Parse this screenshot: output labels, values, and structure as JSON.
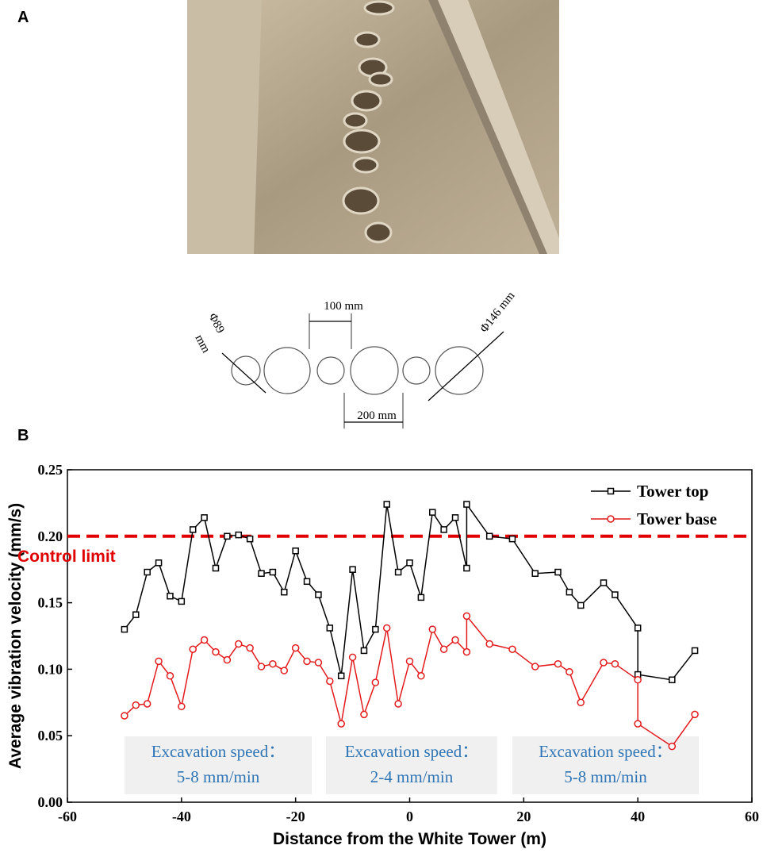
{
  "panel_a": {
    "label": "A"
  },
  "diagram": {
    "spacing_label": "100 mm",
    "small_diameter_label": [
      "Φ89",
      "mm"
    ],
    "large_diameter_label": "Φ146 mm",
    "center_spacing_label": "200 mm"
  },
  "chart_data": {
    "type": "line",
    "panel_label": "B",
    "xlabel": "Distance from the White Tower (m)",
    "ylabel": "Average vibration velocity (mm/s)",
    "xlim": [
      -60,
      60
    ],
    "xticks": [
      -60,
      -40,
      -20,
      0,
      20,
      40,
      60
    ],
    "ylim": [
      0,
      0.25
    ],
    "yticks": [
      {
        "value": 0,
        "label": "0.00"
      },
      {
        "value": 0.05,
        "label": "0.05"
      },
      {
        "value": 0.1,
        "label": "0.10"
      },
      {
        "value": 0.15,
        "label": "0.15"
      },
      {
        "value": 0.2,
        "label": "0.20"
      },
      {
        "value": 0.25,
        "label": "0.25"
      }
    ],
    "legend": "upper right",
    "series": [
      {
        "name": "Tower top",
        "color": "#000000",
        "marker": "square",
        "x": [
          -50,
          -48,
          -46,
          -44,
          -42,
          -40,
          -38,
          -36,
          -34,
          -32,
          -30,
          -28,
          -26,
          -24,
          -22,
          -20,
          -18,
          -16,
          -14,
          -12,
          -10,
          -8,
          -6,
          -4,
          -2,
          0,
          2,
          4,
          6,
          8,
          10,
          10,
          14,
          18,
          22,
          26,
          28,
          30,
          34,
          36,
          40,
          40,
          46,
          50
        ],
        "values": [
          0.13,
          0.141,
          0.173,
          0.18,
          0.155,
          0.151,
          0.205,
          0.214,
          0.176,
          0.2,
          0.201,
          0.198,
          0.172,
          0.173,
          0.158,
          0.189,
          0.166,
          0.156,
          0.131,
          0.095,
          0.175,
          0.114,
          0.13,
          0.224,
          0.173,
          0.18,
          0.154,
          0.218,
          0.205,
          0.214,
          0.176,
          0.224,
          0.2,
          0.198,
          0.172,
          0.173,
          0.158,
          0.148,
          0.165,
          0.156,
          0.131,
          0.096,
          0.092,
          0.114
        ]
      },
      {
        "name": "Tower base",
        "color": "#e31a1c",
        "marker": "circle",
        "x": [
          -50,
          -48,
          -46,
          -44,
          -42,
          -40,
          -38,
          -36,
          -34,
          -32,
          -30,
          -28,
          -26,
          -24,
          -22,
          -20,
          -18,
          -16,
          -14,
          -12,
          -10,
          -8,
          -6,
          -4,
          -2,
          0,
          2,
          4,
          6,
          8,
          10,
          10,
          14,
          18,
          22,
          26,
          28,
          30,
          34,
          36,
          40,
          40,
          46,
          50
        ],
        "values": [
          0.065,
          0.073,
          0.074,
          0.106,
          0.095,
          0.072,
          0.115,
          0.122,
          0.113,
          0.107,
          0.119,
          0.116,
          0.102,
          0.104,
          0.099,
          0.116,
          0.106,
          0.105,
          0.091,
          0.059,
          0.109,
          0.066,
          0.09,
          0.131,
          0.074,
          0.106,
          0.095,
          0.13,
          0.115,
          0.122,
          0.113,
          0.14,
          0.119,
          0.115,
          0.102,
          0.104,
          0.098,
          0.075,
          0.105,
          0.104,
          0.092,
          0.059,
          0.042,
          0.066
        ]
      }
    ],
    "control_limit": {
      "value": 0.2,
      "label": "Control limit",
      "color": "#e00000"
    },
    "annotations": [
      [
        "Excavation speed：",
        "5-8 mm/min"
      ],
      [
        "Excavation speed：",
        "2-4 mm/min"
      ],
      [
        "Excavation speed：",
        "5-8 mm/min"
      ]
    ]
  }
}
